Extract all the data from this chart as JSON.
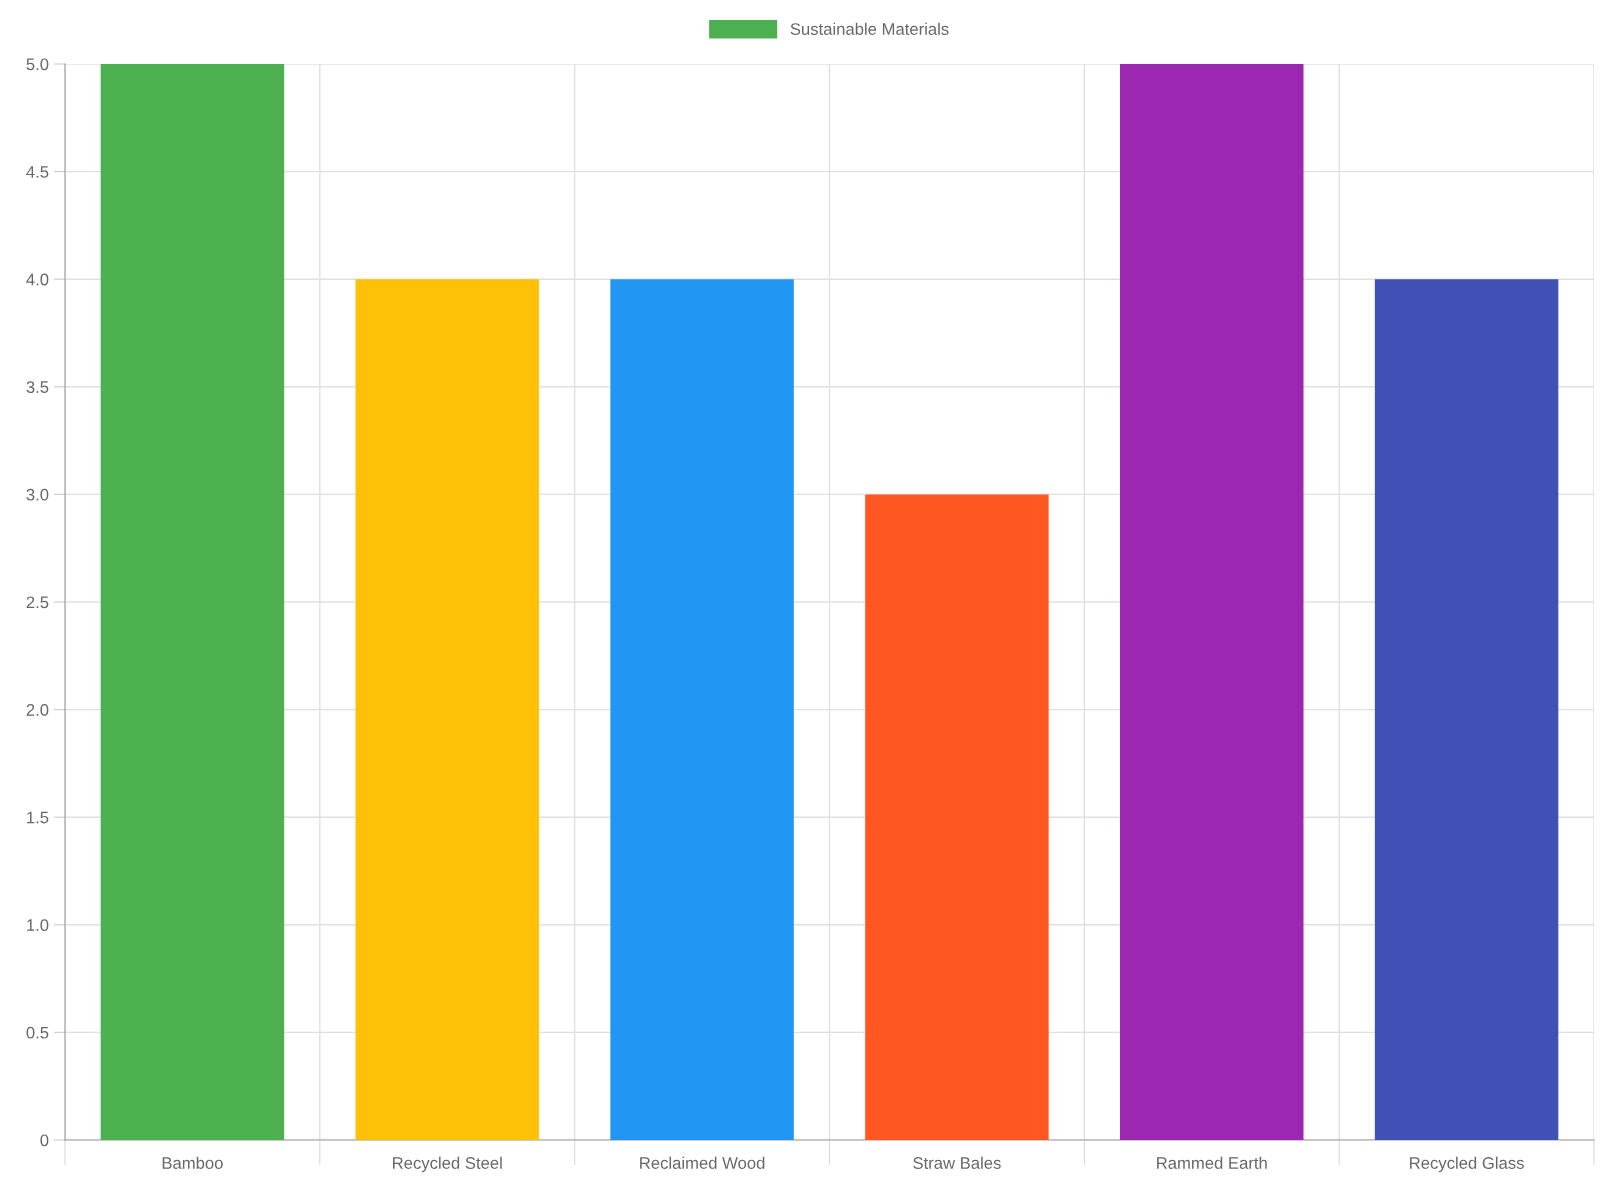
{
  "chart_data": {
    "type": "bar",
    "categories": [
      "Bamboo",
      "Recycled Steel",
      "Reclaimed Wood",
      "Straw Bales",
      "Rammed Earth",
      "Recycled Glass"
    ],
    "series": [
      {
        "name": "Sustainable Materials",
        "colors": [
          "#4caf50",
          "#ffc107",
          "#2196f3",
          "#ff5722",
          "#9c27b0",
          "#3f51b5"
        ],
        "values": [
          5,
          4,
          4,
          3,
          5,
          4
        ]
      }
    ],
    "ylim": [
      0,
      5
    ],
    "yticks": [
      0,
      0.5,
      {
        "value": 1,
        "label": "1.0"
      },
      1.5,
      {
        "value": 2,
        "label": "2.0"
      },
      2.5,
      {
        "value": 3,
        "label": "3.0"
      },
      3.5,
      {
        "value": 4,
        "label": "4.0"
      },
      4.5,
      {
        "value": 5,
        "label": "5.0"
      }
    ],
    "grid": true,
    "legend": "top"
  }
}
